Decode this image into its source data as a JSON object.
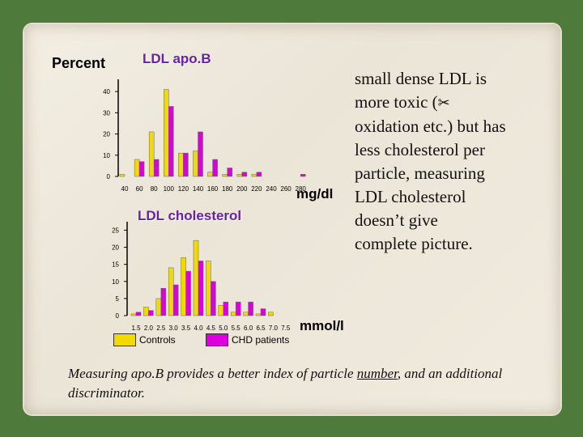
{
  "chart_data": [
    {
      "type": "bar",
      "title": "LDL apo.B",
      "ylabel": "Percent",
      "xlabel": "mg/dl",
      "categories": [
        "40",
        "60",
        "80",
        "100",
        "120",
        "140",
        "160",
        "180",
        "200",
        "220",
        "240",
        "260",
        "280"
      ],
      "y_ticks": [
        "0",
        "10",
        "20",
        "30",
        "40"
      ],
      "ylim": [
        0,
        45
      ],
      "series": [
        {
          "name": "Controls",
          "color": "#f2d900",
          "values": [
            1,
            8,
            21,
            41,
            11,
            12,
            2,
            1,
            1,
            1,
            0,
            0,
            0
          ]
        },
        {
          "name": "CHD patients",
          "color": "#dd00dd",
          "values": [
            0,
            7,
            8,
            33,
            11,
            21,
            8,
            4,
            2,
            2,
            0,
            0,
            1
          ]
        }
      ]
    },
    {
      "type": "bar",
      "title": "LDL cholesterol",
      "xlabel": "mmol/l",
      "categories": [
        "1.5",
        "2.0",
        "2.5",
        "3.0",
        "3.5",
        "4.0",
        "4.5",
        "5.0",
        "5.5",
        "6.0",
        "6.5",
        "7.0",
        "7.5"
      ],
      "y_ticks": [
        "0",
        "5",
        "10",
        "15",
        "20",
        "25"
      ],
      "ylim": [
        0,
        27
      ],
      "series": [
        {
          "name": "Controls",
          "color": "#f2d900",
          "values": [
            0.5,
            2.5,
            5,
            14,
            17,
            22,
            16,
            3,
            1,
            1,
            0.5,
            1,
            0
          ]
        },
        {
          "name": "CHD patients",
          "color": "#dd00dd",
          "values": [
            1,
            1.5,
            8,
            9,
            13,
            16,
            10,
            4,
            4,
            4,
            2,
            0,
            0
          ]
        }
      ]
    }
  ],
  "labels": {
    "percent": "Percent",
    "unit_top": "mg/dl",
    "unit_bottom": "mmol/l"
  },
  "legend": [
    {
      "label": "Controls",
      "color": "#f2d900"
    },
    {
      "label": "CHD patients",
      "color": "#dd00dd"
    }
  ],
  "side_text": {
    "line1": "small dense LDL is",
    "line2a": "more toxic (",
    "glyph": "✂",
    "line3": "oxidation etc.) but has",
    "line4": "less cholesterol per",
    "line5": "particle, measuring",
    "line6": "LDL cholesterol",
    "line7": "doesn’t give",
    "line8": "complete picture."
  },
  "note": {
    "before": "Measuring apo.B provides a better index of particle ",
    "underlined": "number",
    "after": ", and an additional discriminator."
  }
}
